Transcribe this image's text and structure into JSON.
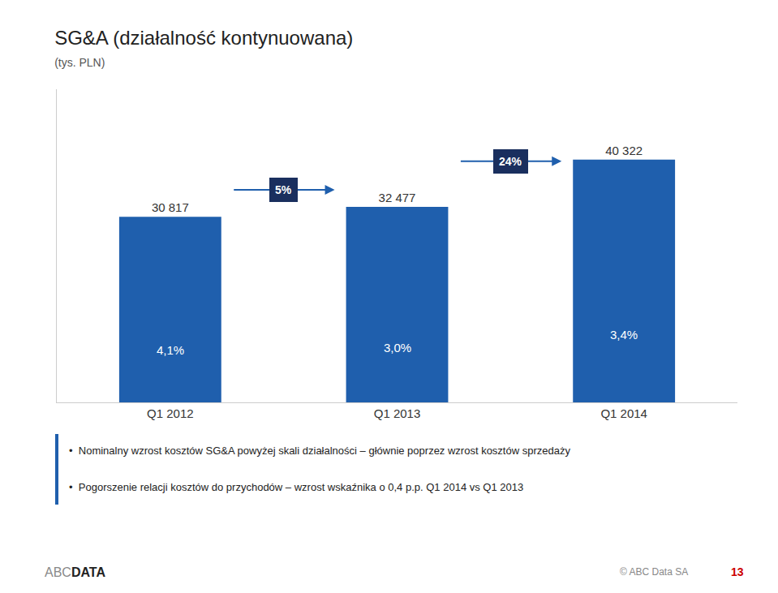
{
  "chart_data": {
    "type": "bar",
    "title": "SG&A (działalność kontynuowana)",
    "subtitle": "(tys. PLN)",
    "categories": [
      "Q1 2012",
      "Q1 2013",
      "Q1 2014"
    ],
    "values": [
      30817,
      32477,
      40322
    ],
    "value_labels": [
      "30 817",
      "32 477",
      "40 322"
    ],
    "data_labels": true,
    "color": "#1F5FAD",
    "ylim": [
      0,
      52000
    ],
    "yticks": [],
    "grid": false,
    "tick_labels": "x",
    "annotations": [
      {
        "text": "4,1%",
        "category": "Q1 2012"
      },
      {
        "text": "3,0%",
        "category": "Q1 2013"
      },
      {
        "text": "3,4%",
        "category": "Q1 2014"
      }
    ],
    "growth": [
      {
        "text": "5%",
        "from": "Q1 2012",
        "to": "Q1 2013"
      },
      {
        "text": "24%",
        "from": "Q1 2013",
        "to": "Q1 2014"
      }
    ],
    "notes": [
      "•  Nominalny wzrost kosztów SG&A powyżej skali działalności – głównie poprzez wzrost kosztów sprzedaży",
      "•  Pogorszenie relacji kosztów do przychodów – wzrost wskaźnika o 0,4 p.p. Q1 2014 vs Q1 2013"
    ],
    "footer": "© ABC Data SA",
    "page_number": "13",
    "logo": [
      "ABC",
      "DATA"
    ]
  }
}
